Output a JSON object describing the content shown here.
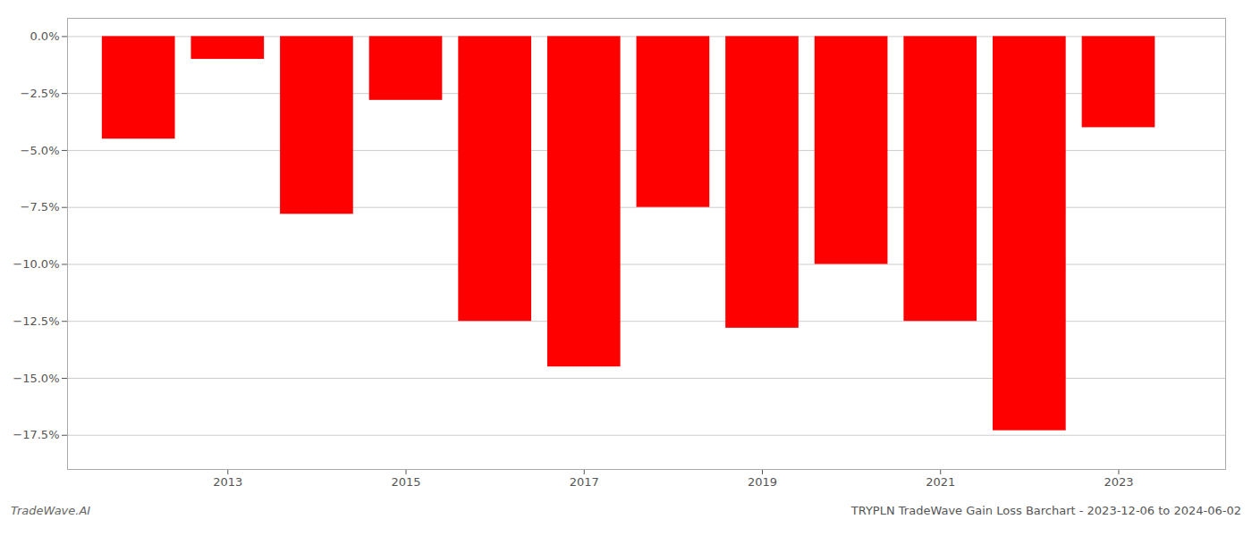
{
  "chart_data": {
    "type": "bar",
    "x": [
      2012,
      2013,
      2014,
      2015,
      2016,
      2017,
      2018,
      2019,
      2020,
      2021,
      2022,
      2023
    ],
    "values": [
      -4.5,
      -1.0,
      -7.8,
      -2.8,
      -12.5,
      -14.5,
      -7.5,
      -12.8,
      -10.0,
      -12.5,
      -17.3,
      -4.0
    ],
    "color": "#ff0000",
    "xlim": [
      2011.2,
      2024.2
    ],
    "xticks": [
      2013,
      2015,
      2017,
      2019,
      2021,
      2023
    ],
    "ylim": [
      -19.0,
      0.8
    ],
    "yticks": [
      {
        "value": 0.0,
        "label": "0.0%"
      },
      {
        "value": -2.5,
        "label": "−2.5%"
      },
      {
        "value": -5.0,
        "label": "−5.0%"
      },
      {
        "value": -7.5,
        "label": "−7.5%"
      },
      {
        "value": -10.0,
        "label": "−10.0%"
      },
      {
        "value": -12.5,
        "label": "−12.5%"
      },
      {
        "value": -15.0,
        "label": "−15.0%"
      },
      {
        "value": -17.5,
        "label": "−17.5%"
      }
    ],
    "grid": "y",
    "annotations": [
      "TradeWave.AI",
      "TRYPLN TradeWave Gain Loss Barchart - 2023-12-06 to 2024-06-02"
    ]
  }
}
